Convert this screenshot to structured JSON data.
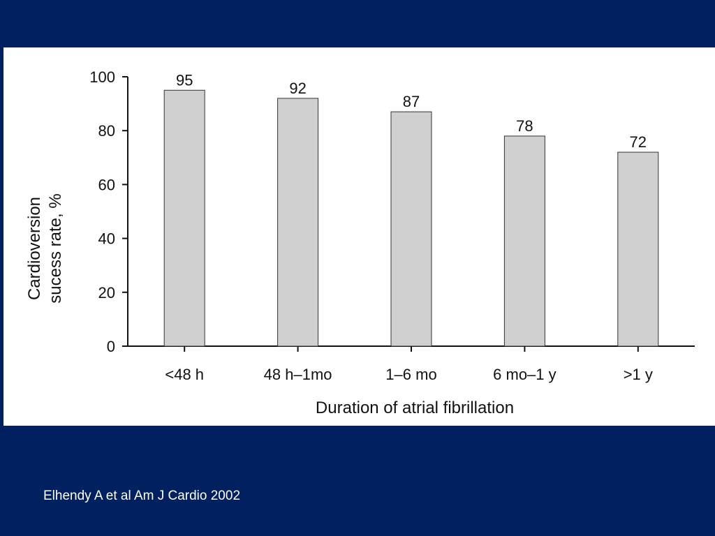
{
  "slide": {
    "background_color": "#002060",
    "citation": "Elhendy A et al Am J Cardio 2002"
  },
  "chart_data": {
    "type": "bar",
    "categories": [
      "<48 h",
      "48 h–1mo",
      "1–6 mo",
      "6 mo–1 y",
      ">1 y"
    ],
    "values": [
      95,
      92,
      87,
      78,
      72
    ],
    "data_labels": [
      "95",
      "92",
      "87",
      "78",
      "72"
    ],
    "title": "",
    "xlabel": "Duration of atrial fibrillation",
    "ylabel_lines": [
      "Cardioversion",
      "sucess rate, %"
    ],
    "ylim": [
      0,
      100
    ],
    "yticks": [
      0,
      20,
      40,
      60,
      80,
      100
    ],
    "grid": false,
    "legend": "none",
    "bar_color": "#d0d0d0",
    "bar_edge_color": "#333333"
  }
}
